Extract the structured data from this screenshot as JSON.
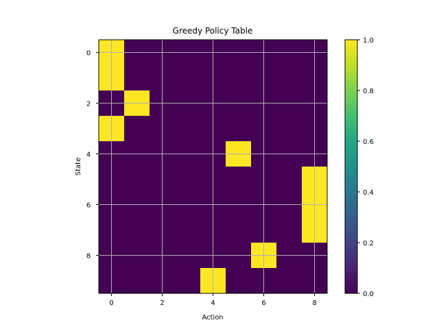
{
  "chart_data": {
    "type": "heatmap",
    "title": "Greedy Policy Table",
    "xlabel": "Action",
    "ylabel": "State",
    "rows": 10,
    "cols": 9,
    "matrix": [
      [
        1,
        0,
        0,
        0,
        0,
        0,
        0,
        0,
        0
      ],
      [
        1,
        0,
        0,
        0,
        0,
        0,
        0,
        0,
        0
      ],
      [
        0,
        1,
        0,
        0,
        0,
        0,
        0,
        0,
        0
      ],
      [
        1,
        0,
        0,
        0,
        0,
        0,
        0,
        0,
        0
      ],
      [
        0,
        0,
        0,
        0,
        0,
        1,
        0,
        0,
        0
      ],
      [
        0,
        0,
        0,
        0,
        0,
        0,
        0,
        0,
        1
      ],
      [
        0,
        0,
        0,
        0,
        0,
        0,
        0,
        0,
        1
      ],
      [
        0,
        0,
        0,
        0,
        0,
        0,
        0,
        0,
        1
      ],
      [
        0,
        0,
        0,
        0,
        0,
        0,
        1,
        0,
        0
      ],
      [
        0,
        0,
        0,
        0,
        1,
        0,
        0,
        0,
        0
      ]
    ],
    "x_ticks": [
      0,
      2,
      4,
      6,
      8
    ],
    "y_ticks": [
      0,
      2,
      4,
      6,
      8
    ],
    "colorbar": {
      "range": [
        0.0,
        1.0
      ],
      "ticks": [
        0.0,
        0.2,
        0.4,
        0.6,
        0.8,
        1.0
      ],
      "tick_labels": [
        "0.0",
        "0.2",
        "0.4",
        "0.6",
        "0.8",
        "1.0"
      ],
      "colormap": "viridis"
    },
    "grid": true
  }
}
